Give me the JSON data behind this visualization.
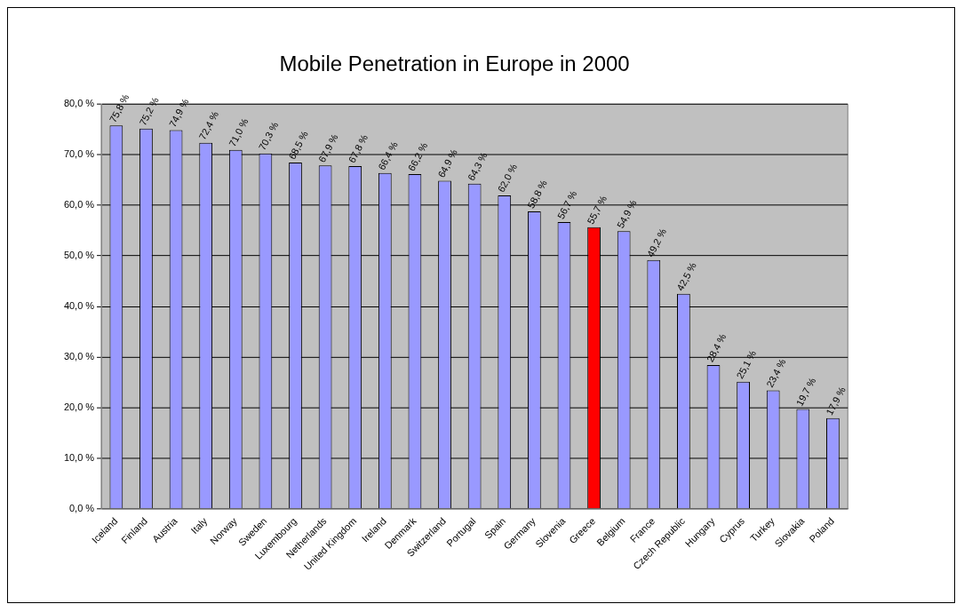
{
  "chart_data": {
    "type": "bar",
    "title": "Mobile Penetration in Europe in 2000",
    "categories": [
      "Iceland",
      "Finland",
      "Austria",
      "Italy",
      "Norway",
      "Sweden",
      "Luxembourg",
      "Netherlands",
      "United Kingdom",
      "Ireland",
      "Denmark",
      "Switzerland",
      "Portugal",
      "Spain",
      "Germany",
      "Slovenia",
      "Greece",
      "Belgium",
      "France",
      "Czech Republic",
      "Hungary",
      "Cyprus",
      "Turkey",
      "Slovakia",
      "Poland"
    ],
    "values": [
      75.8,
      75.2,
      74.9,
      72.4,
      71.0,
      70.3,
      68.5,
      67.9,
      67.8,
      66.4,
      66.2,
      64.9,
      64.3,
      62.0,
      58.8,
      56.7,
      55.7,
      54.9,
      49.2,
      42.5,
      28.4,
      25.1,
      23.4,
      19.7,
      17.9
    ],
    "value_labels": [
      "75,8 %",
      "75,2 %",
      "74,9 %",
      "72,4 %",
      "71,0 %",
      "70,3 %",
      "68,5 %",
      "67,9 %",
      "67,8 %",
      "66,4 %",
      "66,2 %",
      "64,9 %",
      "64,3 %",
      "62,0 %",
      "58,8 %",
      "56,7 %",
      "55,7 %",
      "54,9 %",
      "49,2 %",
      "42,5 %",
      "28,4 %",
      "25,1 %",
      "23,4 %",
      "19,7 %",
      "17,9 %"
    ],
    "colors": [
      "#9999ff",
      "#9999ff",
      "#9999ff",
      "#9999ff",
      "#9999ff",
      "#9999ff",
      "#9999ff",
      "#9999ff",
      "#9999ff",
      "#9999ff",
      "#9999ff",
      "#9999ff",
      "#9999ff",
      "#9999ff",
      "#9999ff",
      "#9999ff",
      "#ff0000",
      "#9999ff",
      "#9999ff",
      "#9999ff",
      "#9999ff",
      "#9999ff",
      "#9999ff",
      "#9999ff",
      "#9999ff"
    ],
    "ylim": [
      0,
      80
    ],
    "yticks": [
      {
        "value": 0,
        "label": "0,0 %"
      },
      {
        "value": 10,
        "label": "10,0 %"
      },
      {
        "value": 20,
        "label": "20,0 %"
      },
      {
        "value": 30,
        "label": "30,0 %"
      },
      {
        "value": 40,
        "label": "40,0 %"
      },
      {
        "value": 50,
        "label": "50,0 %"
      },
      {
        "value": 60,
        "label": "60,0 %"
      },
      {
        "value": 70,
        "label": "70,0 %"
      },
      {
        "value": 80,
        "label": "80,0 %"
      }
    ],
    "grid": "y",
    "legend": false
  }
}
